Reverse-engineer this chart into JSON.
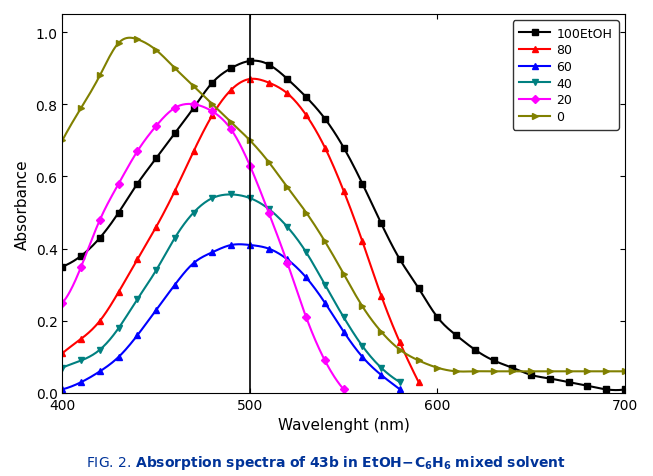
{
  "title": "FIG. 2. Absorption spectra of 43b in EtOH-C₆H₆ mixed solvent",
  "xlabel": "Wavelenght (nm)",
  "ylabel": "Absorbance",
  "xlim": [
    400,
    700
  ],
  "ylim": [
    0.0,
    1.05
  ],
  "yticks": [
    0.0,
    0.2,
    0.4,
    0.6,
    0.8,
    1.0
  ],
  "xticks": [
    400,
    500,
    600,
    700
  ],
  "vline_x": 500,
  "series": [
    {
      "label": "100EtOH",
      "color": "#000000",
      "marker": "s",
      "x": [
        400,
        410,
        420,
        430,
        440,
        450,
        460,
        470,
        480,
        490,
        500,
        510,
        520,
        530,
        540,
        550,
        560,
        570,
        580,
        590,
        600,
        610,
        620,
        630,
        640,
        650,
        660,
        670,
        680,
        690,
        700
      ],
      "y": [
        0.35,
        0.38,
        0.43,
        0.5,
        0.58,
        0.65,
        0.72,
        0.79,
        0.86,
        0.9,
        0.92,
        0.91,
        0.87,
        0.82,
        0.76,
        0.68,
        0.58,
        0.47,
        0.37,
        0.29,
        0.21,
        0.16,
        0.12,
        0.09,
        0.07,
        0.05,
        0.04,
        0.03,
        0.02,
        0.01,
        0.01
      ]
    },
    {
      "label": "80",
      "color": "#ff0000",
      "marker": "^",
      "x": [
        400,
        410,
        420,
        430,
        440,
        450,
        460,
        470,
        480,
        490,
        500,
        510,
        520,
        530,
        540,
        550,
        560,
        570,
        580,
        590
      ],
      "y": [
        0.11,
        0.15,
        0.2,
        0.28,
        0.37,
        0.46,
        0.56,
        0.67,
        0.77,
        0.84,
        0.87,
        0.86,
        0.83,
        0.77,
        0.68,
        0.56,
        0.42,
        0.27,
        0.14,
        0.03
      ]
    },
    {
      "label": "60",
      "color": "#0000ff",
      "marker": "^",
      "x": [
        400,
        410,
        420,
        430,
        440,
        450,
        460,
        470,
        480,
        490,
        500,
        510,
        520,
        530,
        540,
        550,
        560,
        570,
        580
      ],
      "y": [
        0.01,
        0.03,
        0.06,
        0.1,
        0.16,
        0.23,
        0.3,
        0.36,
        0.39,
        0.41,
        0.41,
        0.4,
        0.37,
        0.32,
        0.25,
        0.17,
        0.1,
        0.05,
        0.01
      ]
    },
    {
      "label": "40",
      "color": "#008080",
      "marker": "v",
      "x": [
        400,
        410,
        420,
        430,
        440,
        450,
        460,
        470,
        480,
        490,
        500,
        510,
        520,
        530,
        540,
        550,
        560,
        570,
        580
      ],
      "y": [
        0.07,
        0.09,
        0.12,
        0.18,
        0.26,
        0.34,
        0.43,
        0.5,
        0.54,
        0.55,
        0.54,
        0.51,
        0.46,
        0.39,
        0.3,
        0.21,
        0.13,
        0.07,
        0.03
      ]
    },
    {
      "label": "20",
      "color": "#ff00ff",
      "marker": "D",
      "x": [
        400,
        410,
        420,
        430,
        440,
        450,
        460,
        470,
        480,
        490,
        500,
        510,
        520,
        530,
        540,
        550
      ],
      "y": [
        0.25,
        0.35,
        0.48,
        0.58,
        0.67,
        0.74,
        0.79,
        0.8,
        0.78,
        0.73,
        0.63,
        0.5,
        0.36,
        0.21,
        0.09,
        0.01
      ]
    },
    {
      "label": "0",
      "color": "#808000",
      "marker": ">",
      "x": [
        400,
        410,
        420,
        430,
        440,
        450,
        460,
        470,
        480,
        490,
        500,
        510,
        520,
        530,
        540,
        550,
        560,
        570,
        580,
        590,
        600,
        610,
        620,
        630,
        640,
        650,
        660,
        670,
        680,
        690,
        700
      ],
      "y": [
        0.7,
        0.79,
        0.88,
        0.97,
        0.98,
        0.95,
        0.9,
        0.85,
        0.8,
        0.75,
        0.7,
        0.64,
        0.57,
        0.5,
        0.42,
        0.33,
        0.24,
        0.17,
        0.12,
        0.09,
        0.07,
        0.06,
        0.06,
        0.06,
        0.06,
        0.06,
        0.06,
        0.06,
        0.06,
        0.06,
        0.06
      ]
    }
  ]
}
